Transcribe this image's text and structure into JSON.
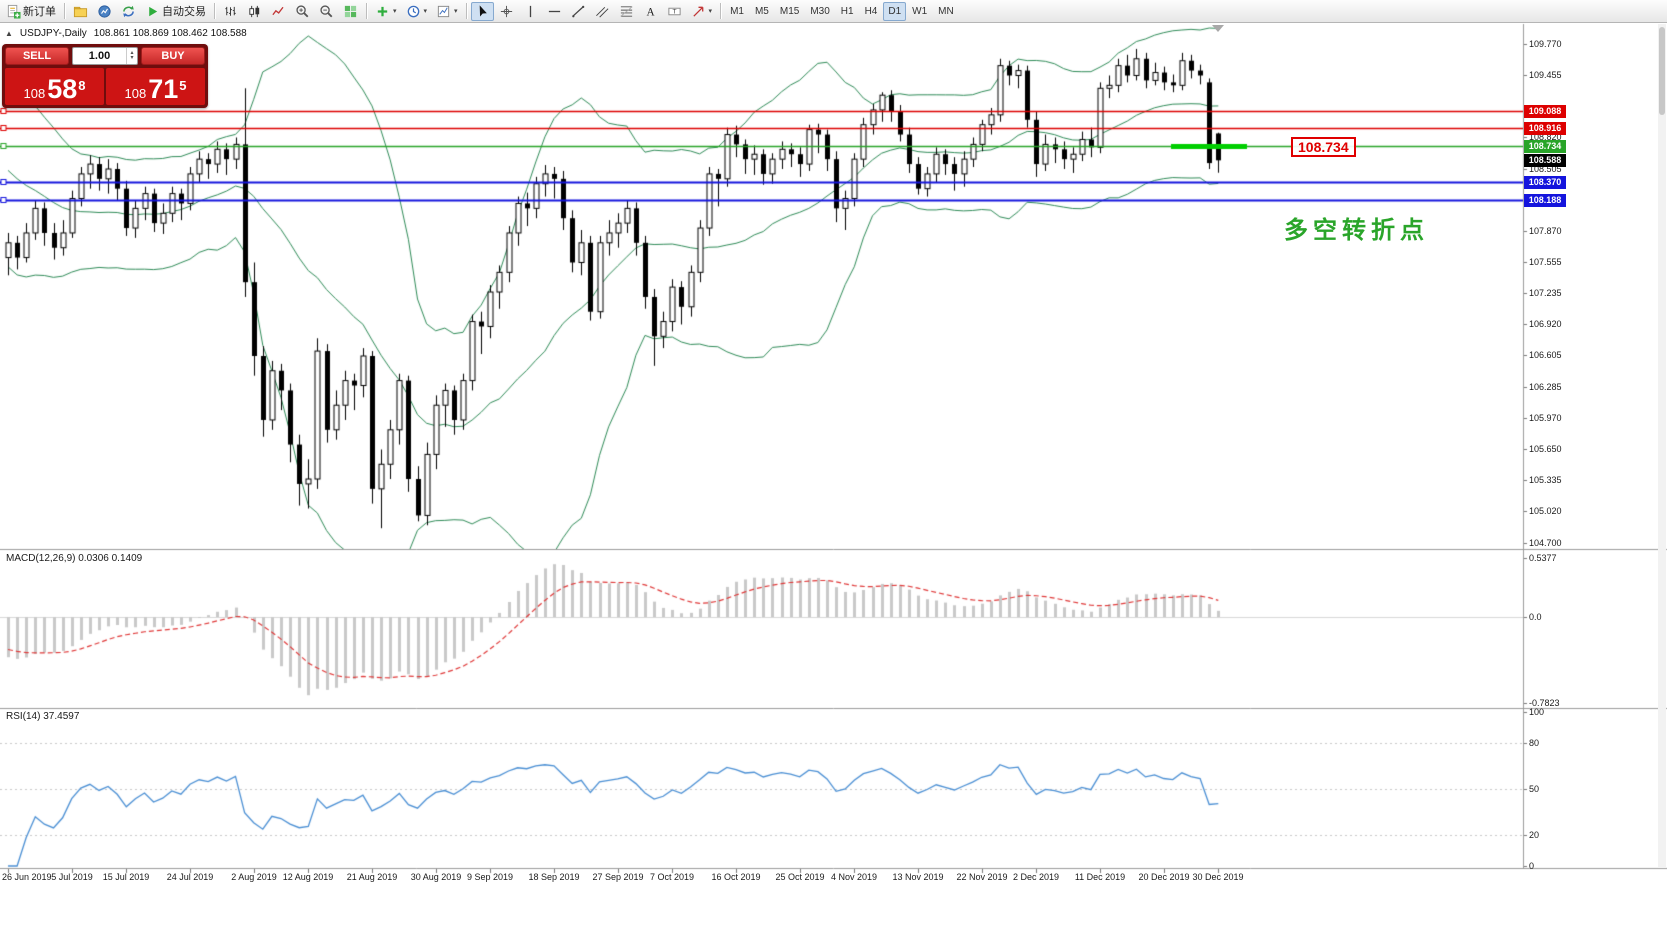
{
  "toolbar": {
    "items": [
      {
        "type": "button",
        "name": "new-order-button",
        "icon": "new-order-icon",
        "label": "新订单"
      },
      {
        "type": "sep"
      },
      {
        "type": "button",
        "name": "profiles-button",
        "icon": "profiles-icon"
      },
      {
        "type": "button",
        "name": "market-watch-button",
        "icon": "market-watch-icon"
      },
      {
        "type": "button",
        "name": "data-window-button",
        "icon": "data-window-icon"
      },
      {
        "type": "button",
        "name": "auto-trading-button",
        "icon": "auto-trading-icon",
        "label": "自动交易"
      },
      {
        "type": "sep"
      },
      {
        "type": "button",
        "name": "bar-chart-button",
        "icon": "bar-chart-icon"
      },
      {
        "type": "button",
        "name": "candlestick-chart-button",
        "icon": "candlestick-icon"
      },
      {
        "type": "button",
        "name": "line-chart-button",
        "icon": "line-chart-icon"
      },
      {
        "type": "button",
        "name": "z oom-in-button",
        "icon": "zoom-in-icon"
      },
      {
        "type": "button",
        "name": "zoom-out-button",
        "icon": "zoom-out-icon"
      },
      {
        "type": "button",
        "name": "tile-windows-button",
        "icon": "tile-windows-icon"
      },
      {
        "type": "sep"
      },
      {
        "type": "button",
        "name": "indicators-button",
        "icon": "indicators-icon",
        "dropdown": true
      },
      {
        "type": "button",
        "name": "periods-button",
        "icon": "periods-icon",
        "dropdown": true
      },
      {
        "type": "button",
        "name": "templates-button",
        "icon": "templates-icon",
        "dropdown": true
      },
      {
        "type": "sep"
      },
      {
        "type": "button",
        "name": "cursor-button",
        "icon": "cursor-icon",
        "active": true
      },
      {
        "type": "button",
        "name": "crosshair-button",
        "icon": "crosshair-icon"
      },
      {
        "type": "button",
        "name": "vertical-line-button",
        "icon": "vline-icon"
      },
      {
        "type": "button",
        "name": "horizontal-line-button",
        "icon": "hline-icon"
      },
      {
        "type": "button",
        "name": "trendline-button",
        "icon": "trendline-icon"
      },
      {
        "type": "button",
        "name": "channel-button",
        "icon": "channel-icon"
      },
      {
        "type": "button",
        "name": "fibonacci-button",
        "icon": "fibo-icon"
      },
      {
        "type": "button",
        "name": "text-button",
        "icon": "text-icon"
      },
      {
        "type": "button",
        "name": "label-button",
        "icon": "label-icon"
      },
      {
        "type": "button",
        "name": "arrows-button",
        "icon": "arrows-icon",
        "dropdown": true
      },
      {
        "type": "sep"
      },
      {
        "type": "timeframes"
      }
    ],
    "timeframes": {
      "items": [
        "M1",
        "M5",
        "M15",
        "M30",
        "H1",
        "H4",
        "D1",
        "W1",
        "MN"
      ],
      "active": "D1"
    }
  },
  "chart": {
    "symbol_label": "USDJPY-,Daily",
    "ohlc": "108.861 108.869 108.462 108.588",
    "trade_panel": {
      "sell_label": "SELL",
      "buy_label": "BUY",
      "volume": "1.00",
      "sell_price": {
        "prefix": "108",
        "big": "58",
        "sup": "8"
      },
      "buy_price": {
        "prefix": "108",
        "big": "71",
        "sup": "5"
      }
    },
    "annotation": {
      "text": "多空转折点",
      "color": "#2aa52a"
    },
    "price_tag": {
      "text": "108.734",
      "color": "#e00000"
    },
    "current_price": {
      "value": 108.588,
      "label": "108.588",
      "bg": "#000000"
    },
    "hlines": [
      {
        "price": 109.088,
        "label": "109.088",
        "color": "#dd0000",
        "w": 1.6
      },
      {
        "price": 108.916,
        "label": "108.916",
        "color": "#dd0000",
        "w": 1.6
      },
      {
        "price": 108.734,
        "label": "108.734",
        "color": "#28a428",
        "w": 1.4
      },
      {
        "price": 108.37,
        "label": "108.370",
        "color": "#1414dd",
        "w": 2
      },
      {
        "price": 108.188,
        "label": "108.188",
        "color": "#1414dd",
        "w": 2
      }
    ],
    "green_segment": {
      "price": 108.734,
      "color": "#00cf00"
    },
    "axis_ticks": {
      "labels": [
        "109.770",
        "109.455",
        "108.820",
        "108.505",
        "107.870",
        "107.555",
        "107.235",
        "106.920",
        "106.605",
        "106.285",
        "105.970",
        "105.650",
        "105.335",
        "105.020",
        "104.700"
      ],
      "values": [
        109.77,
        109.455,
        108.82,
        108.505,
        107.87,
        107.555,
        107.235,
        106.92,
        106.605,
        106.285,
        105.97,
        105.65,
        105.335,
        105.02,
        104.7
      ]
    },
    "bollinger": {
      "period": 20,
      "deviation": 2,
      "color": "#2e8b57"
    }
  },
  "macd": {
    "label": "MACD(12,26,9)",
    "values_text": "0.0306 0.1409",
    "ticks": [
      "0.5377",
      "0.0",
      "-0.7823"
    ],
    "tick_values": [
      0.5377,
      0.0,
      -0.7823
    ]
  },
  "rsi": {
    "label": "RSI(14)",
    "value_text": "37.4597",
    "ticks": [
      "100",
      "80",
      "50",
      "20",
      "0"
    ],
    "tick_values": [
      100,
      80,
      50,
      20,
      0
    ],
    "levels": [
      80,
      50,
      20
    ],
    "color": "#4a8fd4"
  },
  "chart_data": {
    "type": "candlestick",
    "symbol": "USDJPY",
    "timeframe": "Daily",
    "ylim": [
      104.7,
      109.77
    ],
    "x_labels": [
      "26 Jun 2019",
      "5 Jul 2019",
      "15 Jul 2019",
      "24 Jul 2019",
      "2 Aug 2019",
      "12 Aug 2019",
      "21 Aug 2019",
      "30 Aug 2019",
      "9 Sep 2019",
      "18 Sep 2019",
      "27 Sep 2019",
      "7 Oct 2019",
      "16 Oct 2019",
      "25 Oct 2019",
      "4 Nov 2019",
      "13 Nov 2019",
      "22 Nov 2019",
      "2 Dec 2019",
      "11 Dec 2019",
      "20 Dec 2019",
      "30 Dec 2019"
    ],
    "x_label_indices": [
      0,
      7,
      13,
      20,
      27,
      33,
      40,
      47,
      53,
      60,
      67,
      73,
      80,
      87,
      93,
      100,
      107,
      113,
      120,
      127,
      133
    ],
    "candles": [
      [
        107.6,
        107.85,
        107.42,
        107.75
      ],
      [
        107.75,
        107.82,
        107.48,
        107.6
      ],
      [
        107.6,
        107.95,
        107.55,
        107.85
      ],
      [
        107.85,
        108.18,
        107.78,
        108.1
      ],
      [
        108.1,
        108.16,
        107.72,
        107.85
      ],
      [
        107.85,
        107.95,
        107.58,
        107.7
      ],
      [
        107.7,
        107.98,
        107.62,
        107.85
      ],
      [
        107.85,
        108.28,
        107.8,
        108.2
      ],
      [
        108.2,
        108.52,
        108.12,
        108.45
      ],
      [
        108.45,
        108.64,
        108.3,
        108.55
      ],
      [
        108.55,
        108.62,
        108.28,
        108.4
      ],
      [
        108.4,
        108.6,
        108.25,
        108.5
      ],
      [
        108.5,
        108.56,
        108.18,
        108.3
      ],
      [
        108.3,
        108.38,
        107.82,
        107.9
      ],
      [
        107.9,
        108.18,
        107.8,
        108.1
      ],
      [
        108.1,
        108.32,
        107.98,
        108.25
      ],
      [
        108.25,
        108.3,
        107.86,
        107.95
      ],
      [
        107.95,
        108.15,
        107.84,
        108.05
      ],
      [
        108.05,
        108.32,
        107.96,
        108.25
      ],
      [
        108.25,
        108.3,
        107.98,
        108.15
      ],
      [
        108.15,
        108.52,
        108.08,
        108.45
      ],
      [
        108.45,
        108.68,
        108.36,
        108.6
      ],
      [
        108.6,
        108.66,
        108.4,
        108.55
      ],
      [
        108.55,
        108.78,
        108.46,
        108.7
      ],
      [
        108.7,
        108.76,
        108.44,
        108.6
      ],
      [
        108.6,
        108.82,
        108.5,
        108.75
      ],
      [
        108.75,
        109.32,
        107.2,
        107.35
      ],
      [
        107.35,
        107.55,
        106.4,
        106.6
      ],
      [
        106.6,
        106.7,
        105.78,
        105.95
      ],
      [
        105.95,
        106.55,
        105.85,
        106.45
      ],
      [
        106.45,
        106.52,
        106.05,
        106.25
      ],
      [
        106.25,
        106.32,
        105.52,
        105.7
      ],
      [
        105.7,
        105.8,
        105.08,
        105.3
      ],
      [
        105.3,
        105.55,
        105.05,
        105.35
      ],
      [
        105.35,
        106.78,
        105.25,
        106.65
      ],
      [
        106.65,
        106.72,
        105.72,
        105.85
      ],
      [
        105.85,
        106.25,
        105.75,
        106.1
      ],
      [
        106.1,
        106.45,
        105.95,
        106.35
      ],
      [
        106.35,
        106.42,
        106.05,
        106.3
      ],
      [
        106.3,
        106.68,
        106.18,
        106.6
      ],
      [
        106.6,
        106.65,
        105.1,
        105.25
      ],
      [
        105.25,
        105.65,
        104.85,
        105.5
      ],
      [
        105.5,
        105.95,
        105.35,
        105.85
      ],
      [
        105.85,
        106.42,
        105.7,
        106.35
      ],
      [
        106.35,
        106.4,
        105.22,
        105.35
      ],
      [
        105.35,
        105.48,
        104.92,
        104.98
      ],
      [
        104.98,
        105.72,
        104.88,
        105.6
      ],
      [
        105.6,
        106.2,
        105.45,
        106.1
      ],
      [
        106.1,
        106.32,
        105.88,
        106.25
      ],
      [
        106.25,
        106.3,
        105.8,
        105.95
      ],
      [
        105.95,
        106.42,
        105.85,
        106.35
      ],
      [
        106.35,
        107.02,
        106.25,
        106.95
      ],
      [
        106.95,
        107.05,
        106.62,
        106.9
      ],
      [
        106.9,
        107.32,
        106.78,
        107.25
      ],
      [
        107.25,
        107.52,
        107.08,
        107.45
      ],
      [
        107.45,
        107.92,
        107.35,
        107.85
      ],
      [
        107.85,
        108.22,
        107.72,
        108.15
      ],
      [
        108.15,
        108.26,
        107.92,
        108.1
      ],
      [
        108.1,
        108.42,
        108.0,
        108.35
      ],
      [
        108.35,
        108.54,
        108.22,
        108.45
      ],
      [
        108.45,
        108.52,
        108.2,
        108.4
      ],
      [
        108.4,
        108.48,
        107.88,
        108.0
      ],
      [
        108.0,
        108.08,
        107.45,
        107.55
      ],
      [
        107.55,
        107.88,
        107.42,
        107.75
      ],
      [
        107.75,
        107.82,
        106.96,
        107.05
      ],
      [
        107.05,
        107.82,
        106.98,
        107.75
      ],
      [
        107.75,
        107.98,
        107.62,
        107.85
      ],
      [
        107.85,
        108.05,
        107.7,
        107.95
      ],
      [
        107.95,
        108.18,
        107.85,
        108.1
      ],
      [
        108.1,
        108.16,
        107.62,
        107.75
      ],
      [
        107.75,
        107.82,
        107.08,
        107.2
      ],
      [
        107.2,
        107.28,
        106.5,
        106.8
      ],
      [
        106.8,
        107.05,
        106.68,
        106.95
      ],
      [
        106.95,
        107.38,
        106.85,
        107.3
      ],
      [
        107.3,
        107.36,
        106.92,
        107.1
      ],
      [
        107.1,
        107.52,
        107.0,
        107.45
      ],
      [
        107.45,
        107.98,
        107.35,
        107.9
      ],
      [
        107.9,
        108.52,
        107.82,
        108.45
      ],
      [
        108.45,
        108.5,
        108.12,
        108.4
      ],
      [
        108.4,
        108.92,
        108.32,
        108.85
      ],
      [
        108.85,
        108.94,
        108.62,
        108.75
      ],
      [
        108.75,
        108.8,
        108.45,
        108.6
      ],
      [
        108.6,
        108.74,
        108.44,
        108.65
      ],
      [
        108.65,
        108.7,
        108.34,
        108.45
      ],
      [
        108.45,
        108.66,
        108.35,
        108.6
      ],
      [
        108.6,
        108.78,
        108.5,
        108.7
      ],
      [
        108.7,
        108.76,
        108.52,
        108.65
      ],
      [
        108.65,
        108.72,
        108.42,
        108.55
      ],
      [
        108.55,
        108.95,
        108.48,
        108.9
      ],
      [
        108.9,
        108.96,
        108.66,
        108.85
      ],
      [
        108.85,
        108.9,
        108.48,
        108.6
      ],
      [
        108.6,
        108.68,
        107.96,
        108.1
      ],
      [
        108.1,
        108.28,
        107.88,
        108.2
      ],
      [
        108.2,
        108.66,
        108.12,
        108.6
      ],
      [
        108.6,
        109.02,
        108.52,
        108.95
      ],
      [
        108.95,
        109.16,
        108.85,
        109.1
      ],
      [
        109.1,
        109.28,
        108.98,
        109.25
      ],
      [
        109.25,
        109.3,
        108.98,
        109.08
      ],
      [
        109.08,
        109.15,
        108.78,
        108.85
      ],
      [
        108.85,
        108.92,
        108.46,
        108.55
      ],
      [
        108.55,
        108.62,
        108.24,
        108.3
      ],
      [
        108.3,
        108.52,
        108.22,
        108.45
      ],
      [
        108.45,
        108.72,
        108.36,
        108.65
      ],
      [
        108.65,
        108.7,
        108.44,
        108.55
      ],
      [
        108.55,
        108.62,
        108.28,
        108.45
      ],
      [
        108.45,
        108.68,
        108.32,
        108.6
      ],
      [
        108.6,
        108.82,
        108.52,
        108.75
      ],
      [
        108.75,
        109.0,
        108.68,
        108.95
      ],
      [
        108.95,
        109.12,
        108.85,
        109.05
      ],
      [
        109.05,
        109.62,
        108.98,
        109.55
      ],
      [
        109.55,
        109.6,
        109.35,
        109.45
      ],
      [
        109.45,
        109.56,
        109.32,
        109.5
      ],
      [
        109.5,
        109.55,
        108.92,
        109.0
      ],
      [
        109.0,
        109.08,
        108.42,
        108.55
      ],
      [
        108.55,
        108.85,
        108.48,
        108.75
      ],
      [
        108.75,
        108.82,
        108.56,
        108.7
      ],
      [
        108.7,
        108.78,
        108.5,
        108.6
      ],
      [
        108.6,
        108.72,
        108.46,
        108.65
      ],
      [
        108.65,
        108.88,
        108.58,
        108.8
      ],
      [
        108.8,
        108.92,
        108.62,
        108.72
      ],
      [
        108.72,
        109.38,
        108.66,
        109.32
      ],
      [
        109.32,
        109.45,
        109.22,
        109.35
      ],
      [
        109.35,
        109.62,
        109.28,
        109.55
      ],
      [
        109.55,
        109.66,
        109.38,
        109.45
      ],
      [
        109.45,
        109.72,
        109.4,
        109.62
      ],
      [
        109.62,
        109.68,
        109.32,
        109.4
      ],
      [
        109.4,
        109.58,
        109.35,
        109.48
      ],
      [
        109.48,
        109.54,
        109.3,
        109.38
      ],
      [
        109.38,
        109.46,
        109.28,
        109.35
      ],
      [
        109.35,
        109.68,
        109.3,
        109.6
      ],
      [
        109.6,
        109.66,
        109.42,
        109.5
      ],
      [
        109.5,
        109.56,
        109.36,
        109.45
      ],
      [
        109.38,
        109.42,
        108.5,
        108.56
      ],
      [
        108.861,
        108.869,
        108.462,
        108.588
      ]
    ]
  }
}
